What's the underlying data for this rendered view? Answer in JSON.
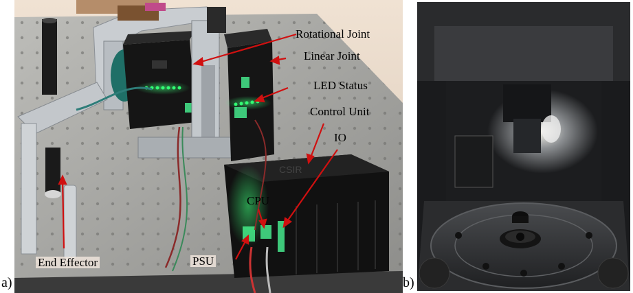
{
  "panels": {
    "a": {
      "label": "a)",
      "callouts": {
        "rotational_joint": "Rotational Joint",
        "linear_joint": "Linear Joint",
        "led_status": "LED Status",
        "control_unit": "Control Unit",
        "io": "IO",
        "cpu": "CPU",
        "psu": "PSU",
        "end_effector": "End Effector",
        "unit_brand": "CSIR"
      }
    },
    "b": {
      "label": "b)"
    }
  },
  "colors": {
    "callout_arrow": "#d01010",
    "led_green": "#2cff70",
    "enclosure_black": "#151515",
    "table_gray": "#a7a7a4",
    "wall_beige": "#e6d6c4"
  }
}
